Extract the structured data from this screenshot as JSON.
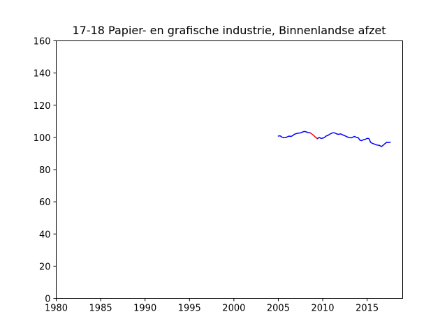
{
  "chart_data": {
    "type": "line",
    "title": "17-18 Papier- en grafische industrie, Binnenlandse afzet",
    "xlabel": "",
    "ylabel": "",
    "xlim": [
      1980,
      2019
    ],
    "ylim": [
      0,
      160
    ],
    "x_ticks": [
      "1980",
      "1985",
      "1990",
      "1995",
      "2000",
      "2005",
      "2010",
      "2015"
    ],
    "y_ticks": [
      "0",
      "20",
      "40",
      "60",
      "80",
      "100",
      "120",
      "140",
      "160"
    ],
    "grid": false,
    "legend": "none",
    "series": [
      {
        "color": "#0000ff",
        "points": [
          [
            2005.0,
            100.8
          ],
          [
            2005.2,
            101.0
          ],
          [
            2005.4,
            100.2
          ],
          [
            2005.6,
            99.8
          ],
          [
            2005.8,
            99.9
          ],
          [
            2006.0,
            100.3
          ],
          [
            2006.2,
            100.8
          ],
          [
            2006.4,
            100.6
          ],
          [
            2006.6,
            101.0
          ],
          [
            2006.8,
            101.9
          ],
          [
            2007.0,
            102.3
          ],
          [
            2007.2,
            102.6
          ],
          [
            2007.4,
            102.7
          ],
          [
            2007.6,
            103.0
          ],
          [
            2007.8,
            103.5
          ],
          [
            2008.0,
            103.7
          ],
          [
            2008.2,
            103.3
          ],
          [
            2008.4,
            103.0
          ],
          [
            2008.6,
            102.8
          ]
        ]
      },
      {
        "color": "#ff0000",
        "points": [
          [
            2008.6,
            102.8
          ],
          [
            2008.9,
            101.6
          ],
          [
            2009.2,
            100.1
          ],
          [
            2009.4,
            99.2
          ]
        ]
      },
      {
        "color": "#0000ff",
        "points": [
          [
            2009.4,
            99.2
          ],
          [
            2009.6,
            100.0
          ],
          [
            2009.8,
            99.4
          ],
          [
            2010.0,
            99.5
          ],
          [
            2010.2,
            100.0
          ],
          [
            2010.4,
            100.9
          ],
          [
            2010.6,
            101.3
          ],
          [
            2010.8,
            102.0
          ],
          [
            2011.0,
            102.6
          ],
          [
            2011.2,
            102.9
          ],
          [
            2011.4,
            102.7
          ],
          [
            2011.6,
            102.1
          ],
          [
            2011.8,
            101.9
          ],
          [
            2012.0,
            102.2
          ],
          [
            2012.2,
            101.7
          ],
          [
            2012.4,
            101.2
          ],
          [
            2012.6,
            100.8
          ],
          [
            2012.8,
            100.2
          ],
          [
            2013.0,
            99.9
          ],
          [
            2013.2,
            99.7
          ],
          [
            2013.4,
            100.2
          ],
          [
            2013.6,
            100.6
          ],
          [
            2013.8,
            100.0
          ],
          [
            2014.0,
            99.8
          ],
          [
            2014.2,
            98.2
          ],
          [
            2014.4,
            98.0
          ],
          [
            2014.6,
            98.6
          ],
          [
            2014.8,
            98.8
          ],
          [
            2015.0,
            99.4
          ],
          [
            2015.2,
            99.3
          ],
          [
            2015.4,
            96.9
          ],
          [
            2015.6,
            96.3
          ],
          [
            2015.8,
            95.9
          ],
          [
            2016.0,
            95.4
          ],
          [
            2016.2,
            95.2
          ],
          [
            2016.4,
            95.0
          ],
          [
            2016.6,
            94.3
          ],
          [
            2016.8,
            95.1
          ],
          [
            2017.0,
            96.1
          ],
          [
            2017.2,
            96.9
          ],
          [
            2017.4,
            96.8
          ],
          [
            2017.6,
            97.0
          ]
        ]
      }
    ]
  }
}
